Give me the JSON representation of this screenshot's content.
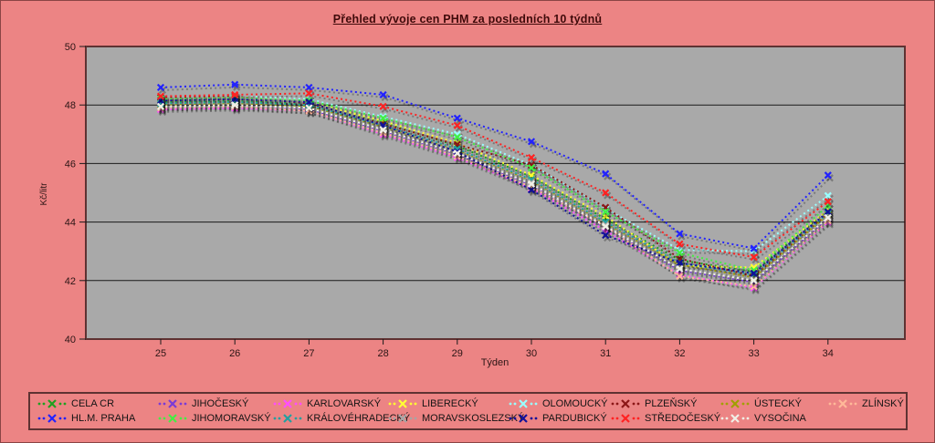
{
  "colors": {
    "background": "#EC8484",
    "plot_background": "#A9A9A9",
    "plot_border": "#5E3232",
    "gridline": "#1a1a1a",
    "axis_text": "#2b1515",
    "title_text": "#3F0A0A",
    "legend_text": "#141414"
  },
  "chart_data": {
    "type": "line",
    "title": "Přehled vývoje cen PHM za posledních 10 týdnů",
    "xlabel": "Týden",
    "ylabel": "Kč/litr",
    "x": [
      25,
      26,
      27,
      28,
      29,
      30,
      31,
      32,
      33,
      34
    ],
    "ylim": [
      40,
      50
    ],
    "yticks": [
      40,
      42,
      44,
      46,
      48,
      50
    ],
    "grid": true,
    "legend_position": "bottom",
    "line_style": "dotted-with-x-markers",
    "series": [
      {
        "name": "CELA CR",
        "color": "#1FA01F",
        "values": [
          48.1,
          48.15,
          48.05,
          47.4,
          46.6,
          45.55,
          44.1,
          42.7,
          42.3,
          44.4
        ]
      },
      {
        "name": "JIHOČESKÝ",
        "color": "#7A3BD6",
        "values": [
          47.9,
          47.95,
          47.85,
          47.1,
          46.3,
          45.25,
          43.8,
          42.35,
          41.95,
          44.1
        ]
      },
      {
        "name": "KARLOVARSKÝ",
        "color": "#FF4DFF",
        "values": [
          47.85,
          47.9,
          47.8,
          47.0,
          46.2,
          45.15,
          43.7,
          42.2,
          41.75,
          44.0
        ]
      },
      {
        "name": "LIBERECKÝ",
        "color": "#FFFF33",
        "values": [
          48.2,
          48.2,
          48.1,
          47.45,
          46.7,
          45.6,
          44.2,
          42.5,
          42.45,
          44.4
        ]
      },
      {
        "name": "OLOMOUCKÝ",
        "color": "#99FFFF",
        "values": [
          48.25,
          48.3,
          48.2,
          47.6,
          47.0,
          45.95,
          44.45,
          43.05,
          43.0,
          44.9
        ]
      },
      {
        "name": "PLZEŇSKÝ",
        "color": "#8B1717",
        "values": [
          48.25,
          48.3,
          48.05,
          47.35,
          46.65,
          45.95,
          44.5,
          42.75,
          42.15,
          44.3
        ]
      },
      {
        "name": "ÚSTECKÝ",
        "color": "#A0A000",
        "values": [
          48.0,
          48.05,
          47.95,
          47.25,
          46.45,
          45.4,
          43.95,
          42.55,
          42.1,
          44.25
        ]
      },
      {
        "name": "ZLÍNSKÝ",
        "color": "#FFB999",
        "values": [
          47.9,
          47.95,
          47.8,
          47.05,
          46.25,
          45.2,
          43.85,
          42.15,
          41.8,
          44.05
        ]
      },
      {
        "name": "HL.M. PRAHA",
        "color": "#2222FF",
        "values": [
          48.6,
          48.7,
          48.6,
          48.35,
          47.55,
          46.75,
          45.65,
          43.6,
          43.1,
          45.6
        ]
      },
      {
        "name": "JIHOMORAVSKÝ",
        "color": "#44EE44",
        "values": [
          48.2,
          48.25,
          48.15,
          47.55,
          46.9,
          45.85,
          44.35,
          42.95,
          42.35,
          44.55
        ]
      },
      {
        "name": "KRÁLOVÉHRADECKÝ",
        "color": "#22A0A0",
        "values": [
          48.05,
          48.1,
          48.0,
          47.3,
          46.5,
          45.45,
          44.0,
          42.6,
          42.2,
          44.3
        ]
      },
      {
        "name": "MORAVSKOSLEZSKÝ",
        "color": "#A6A6A6",
        "values": [
          47.95,
          48.0,
          47.9,
          47.2,
          46.4,
          45.35,
          43.9,
          42.45,
          42.05,
          44.2
        ]
      },
      {
        "name": "PARDUBICKÝ",
        "color": "#111199",
        "values": [
          48.15,
          48.2,
          48.1,
          47.3,
          46.4,
          45.1,
          43.55,
          42.6,
          42.25,
          44.35
        ]
      },
      {
        "name": "STŘEDOČESKÝ",
        "color": "#FF2222",
        "values": [
          48.3,
          48.35,
          48.4,
          47.95,
          47.3,
          46.2,
          45.0,
          43.25,
          42.8,
          44.7
        ]
      },
      {
        "name": "VYSOČINA",
        "color": "#F0F0E6",
        "values": [
          47.95,
          48.0,
          47.9,
          47.15,
          46.35,
          45.3,
          43.85,
          42.4,
          42.0,
          44.15
        ]
      }
    ]
  }
}
